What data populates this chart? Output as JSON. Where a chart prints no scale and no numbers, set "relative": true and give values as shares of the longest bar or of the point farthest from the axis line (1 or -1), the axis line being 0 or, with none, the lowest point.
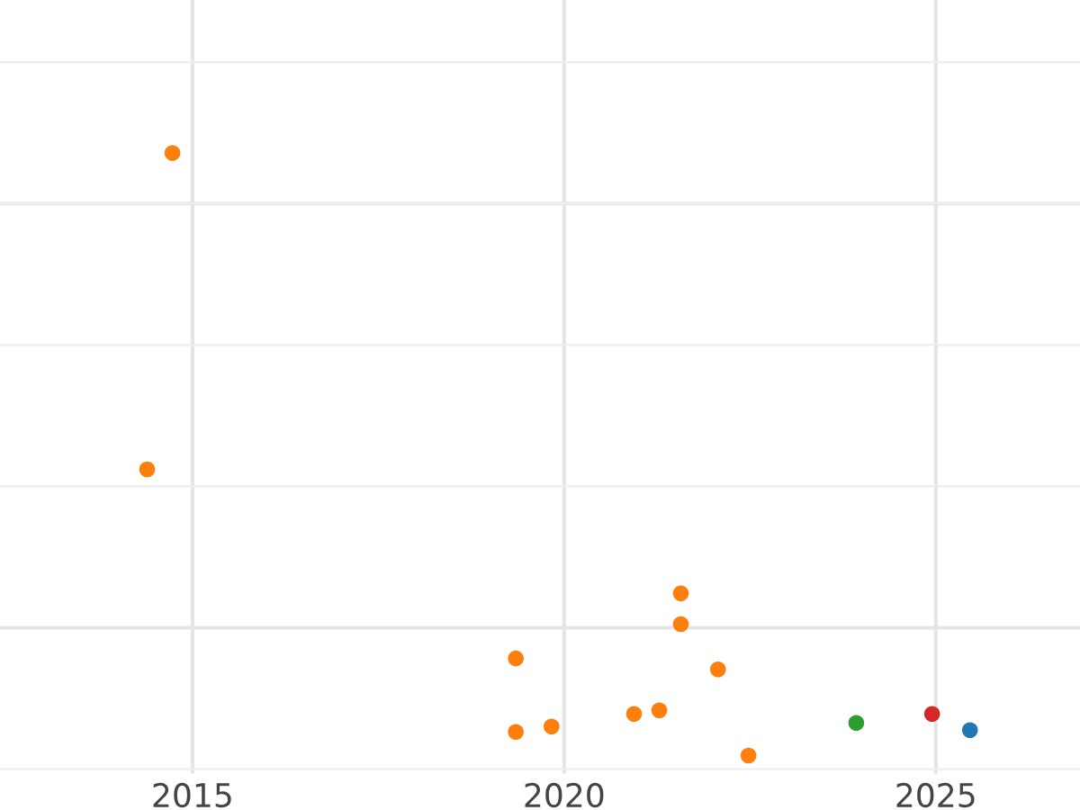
{
  "chart_data": {
    "type": "scatter",
    "relative": true,
    "grid": true,
    "tick_labels": "x",
    "x": [
      2014.73,
      2014.39,
      2021.57,
      2021.57,
      2019.35,
      2022.07,
      2019.35,
      2019.83,
      2020.94,
      2021.28,
      2022.48,
      2023.93,
      2024.95,
      2025.46
    ],
    "values": [
      1.0,
      0.475,
      0.269,
      0.218,
      0.161,
      0.143,
      0.039,
      0.048,
      0.069,
      0.075,
      0.0,
      0.054,
      0.069,
      0.042
    ],
    "colors": [
      "#ff7f0e",
      "#ff7f0e",
      "#ff7f0e",
      "#ff7f0e",
      "#ff7f0e",
      "#ff7f0e",
      "#ff7f0e",
      "#ff7f0e",
      "#ff7f0e",
      "#ff7f0e",
      "#ff7f0e",
      "#2ca02c",
      "#d62728",
      "#1f77b4"
    ],
    "xlim": [
      2012.41,
      2026.94
    ],
    "xticks": [
      2015,
      2020,
      2025
    ],
    "marker": "circle"
  }
}
